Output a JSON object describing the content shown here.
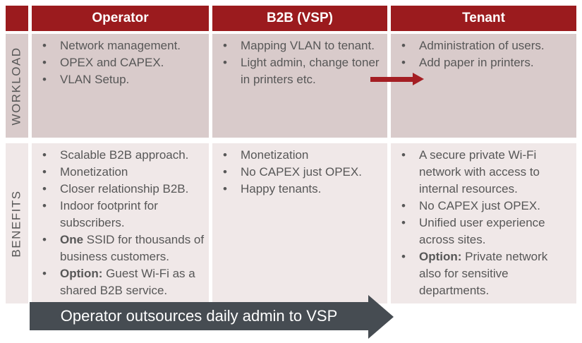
{
  "header": {
    "columns": [
      "Operator",
      "B2B (VSP)",
      "Tenant"
    ]
  },
  "rows": [
    {
      "label": "WORKLOAD",
      "cells": [
        {
          "bullets": [
            {
              "text": "Network management."
            },
            {
              "text": "OPEX and CAPEX."
            },
            {
              "text": "VLAN Setup."
            }
          ]
        },
        {
          "bullets": [
            {
              "text": "Mapping VLAN to tenant."
            },
            {
              "text": "Light admin, change toner in printers etc."
            }
          ]
        },
        {
          "bullets": [
            {
              "text": "Administration of users."
            },
            {
              "text": "Add paper in printers."
            }
          ]
        }
      ]
    },
    {
      "label": "BENEFITS",
      "cells": [
        {
          "bullets": [
            {
              "text": "Scalable B2B approach."
            },
            {
              "text": "Monetization"
            },
            {
              "text": "Closer relationship B2B."
            },
            {
              "text": "Indoor footprint for subscribers."
            },
            {
              "bold": "One",
              "text": " SSID for thousands of business customers."
            },
            {
              "bold": "Option:",
              "text": " Guest Wi-Fi as a shared B2B service."
            }
          ]
        },
        {
          "bullets": [
            {
              "text": "Monetization"
            },
            {
              "text": "No CAPEX just OPEX."
            },
            {
              "text": "Happy tenants."
            }
          ]
        },
        {
          "bullets": [
            {
              "text": "A secure private Wi-Fi network with access to internal resources."
            },
            {
              "text": "No CAPEX just OPEX."
            },
            {
              "text": "Unified user experience across sites."
            },
            {
              "bold": "Option:",
              "text": " Private network also for sensitive departments."
            }
          ]
        }
      ]
    }
  ],
  "workload_arrow": {
    "icon": "right-arrow",
    "color": "#A41E23"
  },
  "bottom_arrow": {
    "label": "Operator outsources daily admin to VSP",
    "icon": "right-arrow-banner",
    "color": "#464C52"
  },
  "colors": {
    "header_bg": "#9B1B1E",
    "header_text": "#FFFFFF",
    "workload_row_bg": "#D9CBCB",
    "benefits_row_bg": "#F0E8E8",
    "body_text": "#575757"
  }
}
